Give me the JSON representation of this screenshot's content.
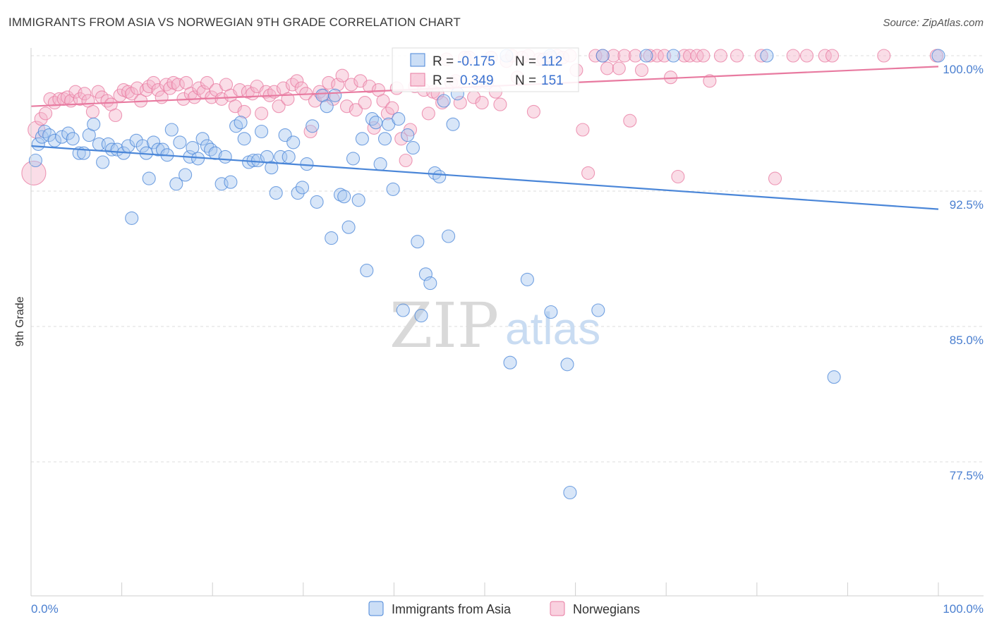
{
  "header": {
    "title": "IMMIGRANTS FROM ASIA VS NORWEGIAN 9TH GRADE CORRELATION CHART",
    "source": "Source: ZipAtlas.com"
  },
  "watermark": {
    "zip": "ZIP",
    "atlas": "atlas"
  },
  "stats": {
    "r_label": "R =",
    "n_label": "N =",
    "rows": [
      {
        "r": "-0.175",
        "n": "112",
        "color": "#4a86d8",
        "fill": "#a9c8f0"
      },
      {
        "r": "0.349",
        "n": "151",
        "color": "#e87aa0",
        "fill": "#f5b3c9"
      }
    ]
  },
  "chart_data": {
    "type": "scatter",
    "title": "IMMIGRANTS FROM ASIA VS NORWEGIAN 9TH GRADE CORRELATION CHART",
    "xlabel": "",
    "ylabel": "9th Grade",
    "xlim": [
      0,
      100
    ],
    "ylim": [
      71.5,
      101.5
    ],
    "x_tick_labels": [
      "0.0%",
      "100.0%"
    ],
    "y_ticks": [
      77.5,
      85.0,
      92.5,
      100.0
    ],
    "y_tick_labels": [
      "77.5%",
      "85.0%",
      "92.5%",
      "100.0%"
    ],
    "grid": "horizontal dashed",
    "legend_position": "bottom-center",
    "series": [
      {
        "name": "Immigrants from Asia",
        "color": "#4a86d8",
        "fill": "#a9c8f0",
        "trend": {
          "x": [
            0,
            100
          ],
          "y": [
            95.0,
            91.5
          ]
        },
        "points": [
          [
            0.5,
            94.2
          ],
          [
            0.8,
            95.1
          ],
          [
            1.2,
            95.5
          ],
          [
            1.5,
            95.8
          ],
          [
            2.0,
            95.6
          ],
          [
            2.6,
            95.3
          ],
          [
            3.4,
            95.5
          ],
          [
            4.1,
            95.7
          ],
          [
            4.6,
            95.4
          ],
          [
            5.3,
            94.6
          ],
          [
            5.8,
            94.6
          ],
          [
            6.4,
            95.6
          ],
          [
            6.9,
            96.2
          ],
          [
            7.5,
            95.1
          ],
          [
            7.9,
            94.1
          ],
          [
            8.5,
            95.1
          ],
          [
            8.9,
            94.8
          ],
          [
            9.5,
            94.8
          ],
          [
            10.2,
            94.6
          ],
          [
            10.7,
            95.0
          ],
          [
            11.1,
            91.0
          ],
          [
            11.6,
            95.3
          ],
          [
            12.3,
            95.0
          ],
          [
            12.7,
            94.6
          ],
          [
            13.0,
            93.2
          ],
          [
            13.5,
            95.2
          ],
          [
            14.0,
            94.8
          ],
          [
            14.5,
            94.8
          ],
          [
            15.0,
            94.5
          ],
          [
            15.5,
            95.9
          ],
          [
            16.0,
            92.9
          ],
          [
            16.4,
            95.2
          ],
          [
            17.0,
            93.4
          ],
          [
            17.5,
            94.4
          ],
          [
            17.8,
            94.9
          ],
          [
            18.4,
            94.3
          ],
          [
            18.9,
            95.4
          ],
          [
            19.4,
            95.0
          ],
          [
            19.8,
            94.8
          ],
          [
            20.3,
            94.6
          ],
          [
            21.0,
            92.9
          ],
          [
            21.4,
            94.4
          ],
          [
            22.0,
            93.0
          ],
          [
            22.6,
            96.1
          ],
          [
            23.1,
            96.3
          ],
          [
            23.5,
            95.4
          ],
          [
            24.0,
            94.1
          ],
          [
            24.5,
            94.2
          ],
          [
            25.0,
            94.2
          ],
          [
            25.4,
            95.8
          ],
          [
            26.0,
            94.4
          ],
          [
            26.5,
            93.8
          ],
          [
            27.0,
            92.4
          ],
          [
            27.5,
            94.4
          ],
          [
            28.0,
            95.6
          ],
          [
            28.4,
            94.4
          ],
          [
            28.9,
            95.2
          ],
          [
            29.4,
            92.4
          ],
          [
            29.9,
            92.7
          ],
          [
            30.4,
            94.0
          ],
          [
            31.0,
            96.1
          ],
          [
            31.5,
            91.9
          ],
          [
            32.1,
            97.8
          ],
          [
            32.6,
            97.2
          ],
          [
            33.1,
            89.9
          ],
          [
            33.5,
            97.8
          ],
          [
            34.1,
            92.3
          ],
          [
            34.5,
            92.2
          ],
          [
            35.0,
            90.5
          ],
          [
            35.5,
            94.3
          ],
          [
            36.1,
            92.0
          ],
          [
            36.5,
            95.4
          ],
          [
            37.0,
            88.1
          ],
          [
            37.6,
            96.5
          ],
          [
            38.0,
            96.3
          ],
          [
            38.5,
            94.0
          ],
          [
            39.0,
            95.4
          ],
          [
            39.4,
            96.2
          ],
          [
            39.9,
            92.6
          ],
          [
            40.5,
            96.5
          ],
          [
            41.0,
            85.9
          ],
          [
            41.5,
            95.6
          ],
          [
            42.1,
            94.9
          ],
          [
            42.6,
            89.7
          ],
          [
            43.0,
            85.6
          ],
          [
            43.5,
            87.9
          ],
          [
            44.0,
            87.4
          ],
          [
            44.5,
            93.5
          ],
          [
            45.0,
            93.3
          ],
          [
            45.5,
            97.5
          ],
          [
            46.0,
            90.0
          ],
          [
            46.5,
            96.2
          ],
          [
            47.0,
            97.9
          ],
          [
            52.4,
            100.0
          ],
          [
            52.8,
            83.0
          ],
          [
            54.7,
            87.6
          ],
          [
            57.2,
            100.0
          ],
          [
            57.3,
            85.8
          ],
          [
            59.1,
            82.9
          ],
          [
            59.4,
            75.8
          ],
          [
            62.5,
            85.9
          ],
          [
            63.0,
            100.0
          ],
          [
            67.8,
            100.0
          ],
          [
            70.8,
            100.0
          ],
          [
            81.1,
            100.0
          ],
          [
            88.5,
            82.2
          ],
          [
            100.0,
            100.0
          ]
        ]
      },
      {
        "name": "Norwegians",
        "color": "#e87aa0",
        "fill": "#f5b3c9",
        "trend": {
          "x": [
            0,
            100
          ],
          "y": [
            97.2,
            99.4
          ]
        },
        "points": [
          [
            0.3,
            93.5
          ],
          [
            0.6,
            95.9
          ],
          [
            1.1,
            96.5
          ],
          [
            1.6,
            96.8
          ],
          [
            2.1,
            97.6
          ],
          [
            2.6,
            97.4
          ],
          [
            3.1,
            97.6
          ],
          [
            3.6,
            97.6
          ],
          [
            4.0,
            97.7
          ],
          [
            4.4,
            97.5
          ],
          [
            4.9,
            98.0
          ],
          [
            5.4,
            97.6
          ],
          [
            5.9,
            97.9
          ],
          [
            6.3,
            97.5
          ],
          [
            6.8,
            96.9
          ],
          [
            7.4,
            98.0
          ],
          [
            7.8,
            97.7
          ],
          [
            8.4,
            97.5
          ],
          [
            8.8,
            97.3
          ],
          [
            9.3,
            96.7
          ],
          [
            9.8,
            97.8
          ],
          [
            10.2,
            98.1
          ],
          [
            10.7,
            98.0
          ],
          [
            11.1,
            97.9
          ],
          [
            11.7,
            98.2
          ],
          [
            12.1,
            97.5
          ],
          [
            12.7,
            98.1
          ],
          [
            13.0,
            98.3
          ],
          [
            13.5,
            98.5
          ],
          [
            14.0,
            98.1
          ],
          [
            14.4,
            97.7
          ],
          [
            14.9,
            98.4
          ],
          [
            15.3,
            98.2
          ],
          [
            15.7,
            98.5
          ],
          [
            16.2,
            98.4
          ],
          [
            16.8,
            97.6
          ],
          [
            17.1,
            98.5
          ],
          [
            17.6,
            97.9
          ],
          [
            18.0,
            97.7
          ],
          [
            18.5,
            98.2
          ],
          [
            19.0,
            98.0
          ],
          [
            19.4,
            98.5
          ],
          [
            19.9,
            97.7
          ],
          [
            20.4,
            98.1
          ],
          [
            21.0,
            97.6
          ],
          [
            21.5,
            98.4
          ],
          [
            22.0,
            97.8
          ],
          [
            22.5,
            97.2
          ],
          [
            23.0,
            98.1
          ],
          [
            23.5,
            96.9
          ],
          [
            23.9,
            98.0
          ],
          [
            24.4,
            97.9
          ],
          [
            24.9,
            98.3
          ],
          [
            25.4,
            96.8
          ],
          [
            25.9,
            98.0
          ],
          [
            26.3,
            97.8
          ],
          [
            26.8,
            98.0
          ],
          [
            27.3,
            97.2
          ],
          [
            27.8,
            98.2
          ],
          [
            28.3,
            97.6
          ],
          [
            28.8,
            98.4
          ],
          [
            29.3,
            98.6
          ],
          [
            29.8,
            98.2
          ],
          [
            30.3,
            97.9
          ],
          [
            30.8,
            95.8
          ],
          [
            31.3,
            97.5
          ],
          [
            31.8,
            98.0
          ],
          [
            32.3,
            97.8
          ],
          [
            32.8,
            98.5
          ],
          [
            33.3,
            97.6
          ],
          [
            33.8,
            98.4
          ],
          [
            34.3,
            98.9
          ],
          [
            34.8,
            97.2
          ],
          [
            35.3,
            98.4
          ],
          [
            35.8,
            97.0
          ],
          [
            36.3,
            98.6
          ],
          [
            36.8,
            97.4
          ],
          [
            37.3,
            98.3
          ],
          [
            37.8,
            96.0
          ],
          [
            38.3,
            98.1
          ],
          [
            38.8,
            97.5
          ],
          [
            39.3,
            96.8
          ],
          [
            39.8,
            97.1
          ],
          [
            40.3,
            98.2
          ],
          [
            40.8,
            95.4
          ],
          [
            41.3,
            94.2
          ],
          [
            41.8,
            95.9
          ],
          [
            42.3,
            98.3
          ],
          [
            42.8,
            98.6
          ],
          [
            43.3,
            98.1
          ],
          [
            43.8,
            96.8
          ],
          [
            44.3,
            98.0
          ],
          [
            44.8,
            97.9
          ],
          [
            45.3,
            97.4
          ],
          [
            45.8,
            99.8
          ],
          [
            46.3,
            98.5
          ],
          [
            46.8,
            98.6
          ],
          [
            47.3,
            97.4
          ],
          [
            47.8,
            99.9
          ],
          [
            48.3,
            99.9
          ],
          [
            48.8,
            97.7
          ],
          [
            49.2,
            98.5
          ],
          [
            49.7,
            97.4
          ],
          [
            50.3,
            98.5
          ],
          [
            50.7,
            99.9
          ],
          [
            51.2,
            98.0
          ],
          [
            51.7,
            97.3
          ],
          [
            52.4,
            99.7
          ],
          [
            53.0,
            100.0
          ],
          [
            53.6,
            98.8
          ],
          [
            54.1,
            99.9
          ],
          [
            54.8,
            100.0
          ],
          [
            55.4,
            96.9
          ],
          [
            56.0,
            99.8
          ],
          [
            56.5,
            99.8
          ],
          [
            57.3,
            99.9
          ],
          [
            58.0,
            100.0
          ],
          [
            58.6,
            99.9
          ],
          [
            59.4,
            100.0
          ],
          [
            60.1,
            99.2
          ],
          [
            60.8,
            95.9
          ],
          [
            61.4,
            93.5
          ],
          [
            62.2,
            100.0
          ],
          [
            63.0,
            100.0
          ],
          [
            63.5,
            99.3
          ],
          [
            64.2,
            100.0
          ],
          [
            64.8,
            99.3
          ],
          [
            65.4,
            100.0
          ],
          [
            66.0,
            96.4
          ],
          [
            66.6,
            100.0
          ],
          [
            67.3,
            99.2
          ],
          [
            68.2,
            100.0
          ],
          [
            69.0,
            100.0
          ],
          [
            69.8,
            100.0
          ],
          [
            70.5,
            98.8
          ],
          [
            71.3,
            93.3
          ],
          [
            72.0,
            100.0
          ],
          [
            72.6,
            100.0
          ],
          [
            73.4,
            100.0
          ],
          [
            74.1,
            100.0
          ],
          [
            74.8,
            98.6
          ],
          [
            76.0,
            100.0
          ],
          [
            77.8,
            100.0
          ],
          [
            80.5,
            100.0
          ],
          [
            82.0,
            93.2
          ],
          [
            84.0,
            100.0
          ],
          [
            85.5,
            100.0
          ],
          [
            87.5,
            100.0
          ],
          [
            88.3,
            100.0
          ],
          [
            94.0,
            100.0
          ],
          [
            99.8,
            100.0
          ]
        ]
      }
    ]
  }
}
